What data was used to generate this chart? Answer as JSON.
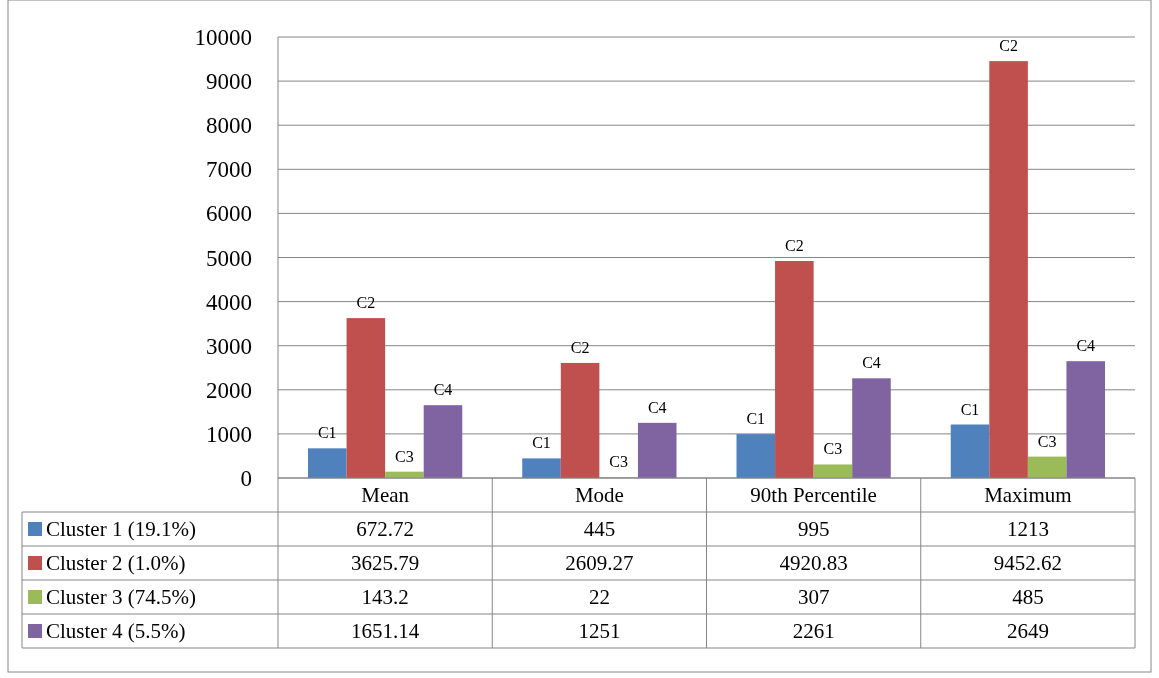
{
  "chart_data": {
    "type": "bar",
    "categories": [
      "Mean",
      "Mode",
      "90th Percentile",
      "Maximum"
    ],
    "series": [
      {
        "name": "Cluster 1 (19.1%)",
        "color": "#4f81bd",
        "values": [
          672.72,
          445,
          995,
          1213
        ]
      },
      {
        "name": "Cluster 2 (1.0%)",
        "color": "#c0504d",
        "values": [
          3625.79,
          2609.27,
          4920.83,
          9452.62
        ]
      },
      {
        "name": "Cluster 3 (74.5%)",
        "color": "#9bbb59",
        "values": [
          143.2,
          22,
          307,
          485
        ]
      },
      {
        "name": "Cluster 4 (5.5%)",
        "color": "#8064a2",
        "values": [
          1651.14,
          1251,
          2261,
          2649
        ]
      }
    ],
    "ylim": [
      0,
      10000
    ],
    "yticks": [
      0,
      1000,
      2000,
      3000,
      4000,
      5000,
      6000,
      7000,
      8000,
      9000,
      10000
    ],
    "grid": "y",
    "legend": "bottom",
    "data_labels": true,
    "annotations": [
      "C1",
      "C2",
      "C3",
      "C4",
      "C1",
      "C2",
      "C3",
      "C4",
      "C1",
      "C2",
      "C3",
      "C4",
      "C1",
      "C2",
      "C3",
      "C4"
    ]
  }
}
